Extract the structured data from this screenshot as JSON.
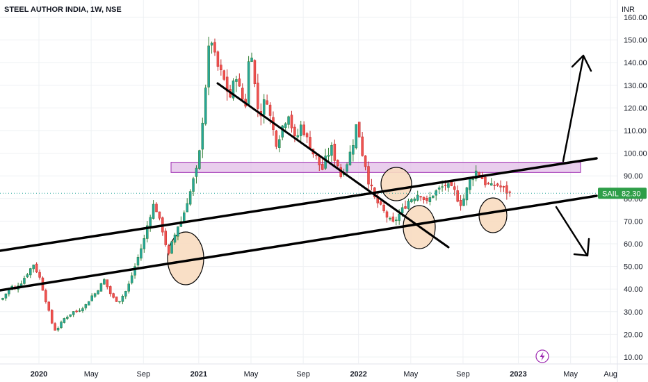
{
  "header": {
    "title": "STEEL AUTHOR INDIA, 1W, NSE"
  },
  "axis": {
    "currency": "INR"
  },
  "colors": {
    "up": "#26a69a",
    "down": "#ef5350",
    "upDark": "#2e7d32",
    "downDark": "#c62828",
    "grid": "#eef0f3",
    "zone": "#e1bee7",
    "zoneBorder": "#9c27b0",
    "circleFill": "#f8dcc0",
    "lastBadge": "#2e9e48"
  },
  "last_price": {
    "ticker": "SAIL",
    "value": "82.30"
  },
  "chart_data": {
    "type": "candlestick",
    "title": "STEEL AUTHOR INDIA, 1W, NSE",
    "ylim": [
      5,
      162
    ],
    "y_ticks": [
      "10.00",
      "20.00",
      "30.00",
      "40.00",
      "50.00",
      "60.00",
      "70.00",
      "80.00",
      "90.00",
      "100.00",
      "110.00",
      "120.00",
      "130.00",
      "140.00",
      "150.00",
      "160.00"
    ],
    "x_ticks": [
      {
        "label": "2020",
        "t": 0,
        "bold": true
      },
      {
        "label": "May",
        "t": 17,
        "bold": false
      },
      {
        "label": "Sep",
        "t": 34,
        "bold": false
      },
      {
        "label": "2021",
        "t": 52,
        "bold": true
      },
      {
        "label": "May",
        "t": 69,
        "bold": false
      },
      {
        "label": "Sep",
        "t": 86,
        "bold": false
      },
      {
        "label": "2022",
        "t": 104,
        "bold": true
      },
      {
        "label": "May",
        "t": 121,
        "bold": false
      },
      {
        "label": "Sep",
        "t": 138,
        "bold": false
      },
      {
        "label": "2023",
        "t": 156,
        "bold": true
      },
      {
        "label": "May",
        "t": 173,
        "bold": false
      },
      {
        "label": "Aug",
        "t": 186,
        "bold": false
      }
    ],
    "trend_close": [
      36,
      38,
      40,
      41,
      40,
      42,
      43,
      45,
      47,
      49,
      51,
      48,
      45,
      40,
      35,
      30,
      25,
      22,
      23,
      25,
      27,
      28,
      29,
      30,
      30,
      31,
      32,
      33,
      35,
      37,
      38,
      40,
      42,
      44,
      41,
      38,
      36,
      35,
      35,
      37,
      39,
      42,
      46,
      50,
      54,
      58,
      62,
      68,
      73,
      77,
      75,
      70,
      66,
      60,
      55,
      60,
      64,
      68,
      70,
      74,
      79,
      83,
      88,
      92,
      100,
      115,
      130,
      145,
      150,
      142,
      138,
      135,
      132,
      128,
      125,
      130,
      135,
      128,
      124,
      122,
      140,
      145,
      130,
      120,
      118,
      122,
      124,
      116,
      110,
      105,
      108,
      112,
      115,
      118,
      112,
      106,
      108,
      112,
      110,
      106,
      104,
      100,
      98,
      95,
      93,
      97,
      100,
      102,
      98,
      95,
      90,
      93,
      96,
      100,
      105,
      112,
      108,
      100,
      95,
      88,
      84,
      80,
      78,
      76,
      74,
      72,
      70,
      69,
      71,
      73,
      75,
      77,
      79,
      80,
      81,
      82,
      82,
      80,
      78,
      80,
      82,
      83,
      84,
      85,
      86,
      85,
      84,
      83,
      80,
      78,
      80,
      84,
      88,
      90,
      92,
      91,
      89,
      87,
      86,
      85,
      86,
      86,
      85,
      84,
      83,
      82.3
    ],
    "last_price": 82.3,
    "resistance_zone": [
      91.5,
      96
    ],
    "annotations": [
      "upper channel line",
      "lower channel line",
      "falling trendline",
      "breakout arrow up",
      "breakdown arrow down",
      "support touch circles"
    ]
  }
}
